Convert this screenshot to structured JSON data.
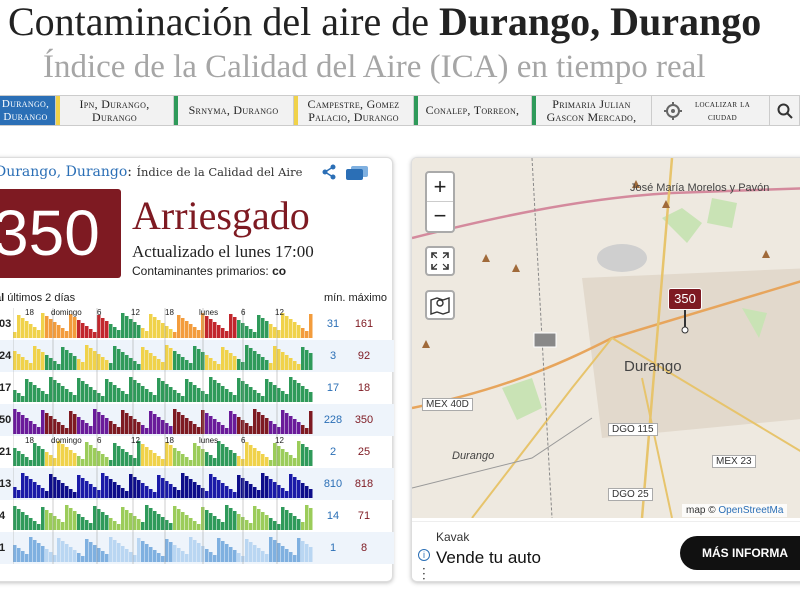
{
  "header": {
    "title_prefix": "Contaminación del aire de ",
    "title_bold": "Durango, Durango",
    "subtitle": "Índice de la Calidad del Aire (ICA) en tiempo real"
  },
  "tabs": [
    {
      "label": "Durango, Durango",
      "active": true,
      "bar_color": "#2b6fb6"
    },
    {
      "label": "Ipn, Durango, Durango",
      "active": false,
      "bar_color": "#f0d24a"
    },
    {
      "label": "Srnyma, Durango",
      "active": false,
      "bar_color": "#2f9a5a"
    },
    {
      "label": "Campestre, Gomez Palacio, Durango",
      "active": false,
      "bar_color": "#f0d24a"
    },
    {
      "label": "Conalep, Torreon,",
      "active": false,
      "bar_color": "#2f9a5a"
    },
    {
      "label": "Primaria Julian Gascon Mercado,",
      "active": false,
      "bar_color": "#2f9a5a"
    },
    {
      "label": "localizar la ciudad",
      "active": false
    }
  ],
  "station": {
    "name": "Durango, Durango",
    "separator": ":",
    "panel_label": "Índice de la Calidad del Aire",
    "aqi": "350",
    "status": "Arriesgado",
    "updated": "Actualizado el lunes 17:00",
    "primary_label": "Contaminantes primarios:",
    "primary_value": "co",
    "status_color": "#7e1a22"
  },
  "history": {
    "header_bold": "al",
    "header_text": "últimos 2 días",
    "min_label": "mín.",
    "max_label": "máximo",
    "day_labels_top": [
      "18",
      "domingo",
      "6",
      "12",
      "18",
      "lunes",
      "6",
      "12"
    ],
    "rows": [
      {
        "code": "03",
        "min": "31",
        "max": "161"
      },
      {
        "code": "24",
        "min": "3",
        "max": "92"
      },
      {
        "code": "17",
        "min": "17",
        "max": "18"
      },
      {
        "code": "50",
        "min": "228",
        "max": "350"
      },
      {
        "code": "21",
        "min": "2",
        "max": "25"
      },
      {
        "code": "13",
        "min": "810",
        "max": "818"
      },
      {
        "code": "4",
        "min": "14",
        "max": "71"
      },
      {
        "code": "1",
        "min": "1",
        "max": "8"
      }
    ]
  },
  "map": {
    "zoom_in": "+",
    "zoom_out": "−",
    "marker_value": "350",
    "labels": {
      "city": "Durango",
      "city2": "Durango",
      "town": "José María Morelos y Pavón"
    },
    "roads": [
      "MEX 40D",
      "DGO 115",
      "MEX 23",
      "DGO 25"
    ],
    "attribution_prefix": "map © ",
    "attribution_link": "OpenStreetMa"
  },
  "ad": {
    "brand": "Kavak",
    "headline": "Vende tu auto",
    "cta": "MÁS INFORMA",
    "info": "i"
  }
}
